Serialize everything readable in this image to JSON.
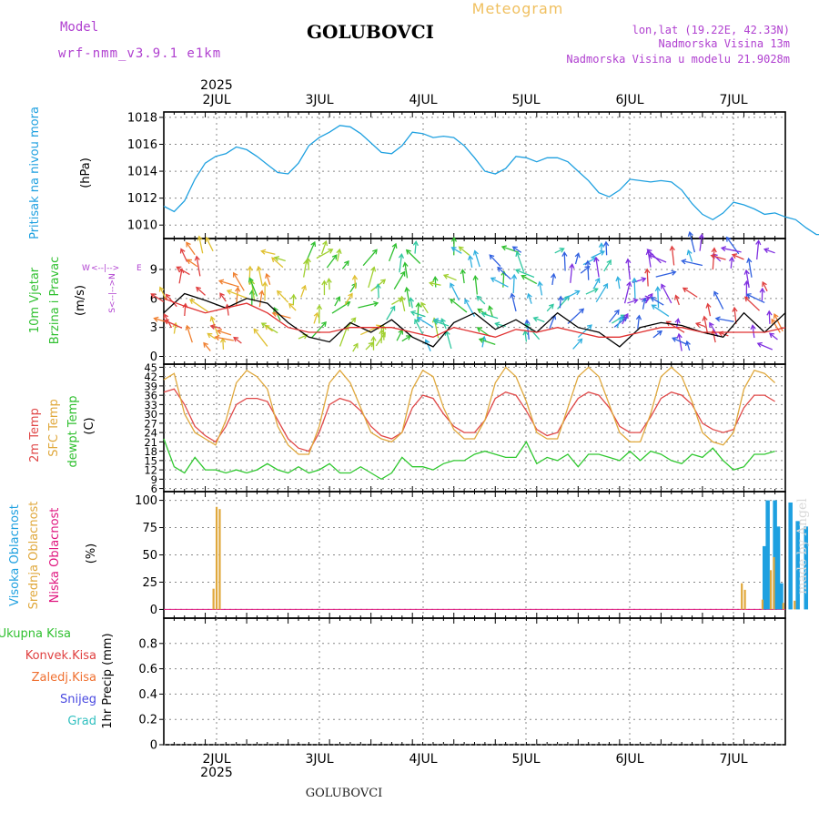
{
  "header": {
    "model_label": "Model",
    "model_name": "wrf-nmm_v3.9.1 e1km",
    "station": "GOLUBOVCI",
    "meteogram_label": "Meteogram",
    "lonlat": "lon,lat (19.22E, 42.33N)",
    "elevation": "Nadmorska Visina 13m",
    "model_elevation": "Nadmorska Visina u modelu 21.9028m",
    "footer_station": "GOLUBOVCI",
    "watermark": "made by Angel",
    "colors": {
      "model": "#b040d0",
      "meteogram": "#f0c060",
      "station": "#000000"
    }
  },
  "chart_data": [
    {
      "id": "pressure",
      "type": "line",
      "title": "",
      "ylabel_lines": [
        "Pritisak na nivou mora"
      ],
      "unit": "(hPa)",
      "ylim": [
        1009,
        1018.4
      ],
      "yticks": [
        "1010",
        "1012",
        "1014",
        "1016",
        "1018"
      ],
      "ytick_values": [
        1010,
        1012,
        1014,
        1016,
        1018
      ],
      "x_days": [
        "2JUL",
        "3JUL",
        "4JUL",
        "5JUL",
        "6JUL",
        "7JUL"
      ],
      "year_label": "2025",
      "series": [
        {
          "color": "#1ea0e0",
          "x": [
            0,
            1,
            2,
            3,
            4,
            5,
            6,
            7,
            8,
            9,
            10,
            11,
            12,
            13,
            14,
            15,
            16,
            17,
            18,
            19,
            20,
            21,
            22,
            23,
            24,
            25,
            26,
            27,
            28,
            29,
            30,
            31,
            32,
            33,
            34,
            35,
            36,
            37,
            38,
            39,
            40,
            41,
            42,
            43,
            44,
            45,
            46,
            47,
            48,
            49,
            50,
            51,
            52,
            53,
            54,
            55,
            56,
            57,
            58,
            59,
            60,
            61,
            62,
            63,
            64,
            65,
            66,
            67,
            68,
            69,
            70,
            71,
            72
          ],
          "values": [
            1011.4,
            1011.0,
            1011.8,
            1013.4,
            1014.6,
            1015.1,
            1015.3,
            1015.8,
            1015.6,
            1015.1,
            1014.5,
            1013.9,
            1013.8,
            1014.6,
            1015.9,
            1016.5,
            1016.9,
            1017.4,
            1017.3,
            1016.8,
            1016.1,
            1015.4,
            1015.3,
            1015.9,
            1016.9,
            1016.8,
            1016.5,
            1016.6,
            1016.5,
            1015.9,
            1015.0,
            1014.0,
            1013.8,
            1014.2,
            1015.1,
            1015.0,
            1014.7,
            1015.0,
            1015.0,
            1014.7,
            1014.0,
            1013.3,
            1012.4,
            1012.1,
            1012.6,
            1013.4,
            1013.3,
            1013.2,
            1013.3,
            1013.2,
            1012.6,
            1011.6,
            1010.8,
            1010.4,
            1010.9,
            1011.7,
            1011.5,
            1011.2,
            1010.8,
            1010.9,
            1010.6,
            1010.4,
            1009.8,
            1009.3,
            1009.3,
            1009.3,
            1009.3,
            1009.3,
            1009.3,
            1009.3,
            1009.3,
            1009.3,
            1009.3
          ]
        }
      ]
    },
    {
      "id": "wind",
      "type": "line",
      "title": "",
      "ylabel_lines": [
        "10m Vjetar",
        "Brzina i Pravac"
      ],
      "unit": "(m/s)",
      "ylim": [
        -0.8,
        12.2
      ],
      "yticks": [
        "0",
        "3",
        "6",
        "9"
      ],
      "ytick_values": [
        0,
        3,
        6,
        9
      ],
      "compass": {
        "n": "N",
        "s": "S",
        "e": "E",
        "w": "W",
        "arrows": "<--|-->"
      },
      "series": [
        {
          "color": "#000000",
          "x": [
            0,
            2,
            4,
            6,
            8,
            10,
            12,
            14,
            16,
            18,
            20,
            22,
            24,
            26,
            28,
            30,
            32,
            34,
            36,
            38,
            40,
            42,
            44,
            46,
            48,
            50,
            52,
            54,
            56,
            58,
            60
          ],
          "values": [
            4.5,
            6.5,
            5.8,
            5.0,
            6.0,
            5.5,
            3.5,
            2.0,
            1.5,
            3.5,
            2.5,
            3.8,
            2.0,
            1.0,
            3.5,
            4.5,
            2.8,
            3.8,
            2.5,
            4.5,
            3.0,
            2.5,
            1.0,
            3.0,
            3.5,
            3.2,
            2.5,
            2.0,
            4.5,
            2.5,
            4.5
          ]
        },
        {
          "color": "#e03030",
          "x": [
            0,
            2,
            4,
            6,
            8,
            10,
            12,
            14,
            16,
            18,
            20,
            22,
            24,
            26,
            28,
            30,
            32,
            34,
            36,
            38,
            40,
            42,
            44,
            46,
            48,
            50,
            52,
            54,
            56,
            58,
            60
          ],
          "values": [
            6.0,
            5.2,
            4.5,
            5.0,
            5.5,
            4.5,
            3.0,
            2.5,
            2.5,
            3.0,
            3.0,
            3.0,
            2.5,
            2.0,
            3.0,
            2.5,
            2.0,
            2.8,
            2.5,
            3.0,
            2.5,
            2.0,
            2.0,
            2.5,
            3.0,
            3.0,
            2.5,
            2.5,
            2.5,
            2.5,
            3.0
          ]
        }
      ]
    },
    {
      "id": "temperature",
      "type": "line",
      "title": "",
      "ylabel_lines": [
        "2m Temp",
        "SFC Temp",
        "dewpt Temp"
      ],
      "unit": "(C)",
      "ylim": [
        5,
        46
      ],
      "yticks": [
        "6",
        "9",
        "12",
        "15",
        "18",
        "21",
        "24",
        "27",
        "30",
        "33",
        "36",
        "39",
        "42",
        "45"
      ],
      "ytick_values": [
        6,
        9,
        12,
        15,
        18,
        21,
        24,
        27,
        30,
        33,
        36,
        39,
        42,
        45
      ],
      "series": [
        {
          "name": "2m Temp",
          "color": "#e04848",
          "x": [
            0,
            1,
            2,
            3,
            4,
            5,
            6,
            7,
            8,
            9,
            10,
            11,
            12,
            13,
            14,
            15,
            16,
            17,
            18,
            19,
            20,
            21,
            22,
            23,
            24,
            25,
            26,
            27,
            28,
            29,
            30,
            31,
            32,
            33,
            34,
            35,
            36,
            37,
            38,
            39,
            40,
            41,
            42,
            43,
            44,
            45,
            46,
            47,
            48,
            49,
            50,
            51,
            52,
            53,
            54,
            55,
            56,
            57,
            58,
            59
          ],
          "values": [
            37,
            38,
            33,
            26,
            23,
            21,
            26,
            33,
            35,
            35,
            34,
            28,
            22,
            19,
            18,
            24,
            33,
            35,
            34,
            31,
            26,
            23,
            22,
            24,
            32,
            36,
            35,
            30,
            26,
            24,
            24,
            28,
            35,
            37,
            36,
            31,
            25,
            23,
            24,
            30,
            35,
            37,
            36,
            32,
            26,
            24,
            24,
            29,
            35,
            37,
            36,
            33,
            27,
            25,
            24,
            25,
            32,
            36,
            36,
            34
          ]
        },
        {
          "name": "SFC Temp",
          "color": "#e0a83c",
          "x": [
            0,
            1,
            2,
            3,
            4,
            5,
            6,
            7,
            8,
            9,
            10,
            11,
            12,
            13,
            14,
            15,
            16,
            17,
            18,
            19,
            20,
            21,
            22,
            23,
            24,
            25,
            26,
            27,
            28,
            29,
            30,
            31,
            32,
            33,
            34,
            35,
            36,
            37,
            38,
            39,
            40,
            41,
            42,
            43,
            44,
            45,
            46,
            47,
            48,
            49,
            50,
            51,
            52,
            53,
            54,
            55,
            56,
            57,
            58,
            59
          ],
          "values": [
            41,
            43,
            30,
            24,
            22,
            20,
            28,
            40,
            44,
            42,
            38,
            26,
            20,
            17,
            17,
            26,
            40,
            44,
            40,
            32,
            24,
            22,
            21,
            24,
            38,
            44,
            42,
            32,
            25,
            22,
            22,
            28,
            40,
            45,
            42,
            34,
            24,
            22,
            22,
            32,
            42,
            45,
            42,
            33,
            24,
            21,
            21,
            30,
            42,
            45,
            42,
            34,
            24,
            21,
            20,
            24,
            38,
            44,
            43,
            40
          ]
        },
        {
          "name": "dewpt Temp",
          "color": "#30c830",
          "x": [
            0,
            1,
            2,
            3,
            4,
            5,
            6,
            7,
            8,
            9,
            10,
            11,
            12,
            13,
            14,
            15,
            16,
            17,
            18,
            19,
            20,
            21,
            22,
            23,
            24,
            25,
            26,
            27,
            28,
            29,
            30,
            31,
            32,
            33,
            34,
            35,
            36,
            37,
            38,
            39,
            40,
            41,
            42,
            43,
            44,
            45,
            46,
            47,
            48,
            49,
            50,
            51,
            52,
            53,
            54,
            55,
            56,
            57,
            58,
            59
          ],
          "values": [
            22,
            13,
            11,
            16,
            12,
            12,
            11,
            12,
            11,
            12,
            14,
            12,
            11,
            13,
            11,
            12,
            14,
            11,
            11,
            13,
            11,
            9,
            11,
            16,
            13,
            13,
            12,
            14,
            15,
            15,
            17,
            18,
            17,
            16,
            16,
            21,
            14,
            16,
            15,
            17,
            13,
            17,
            17,
            16,
            15,
            18,
            15,
            18,
            17,
            15,
            14,
            17,
            16,
            19,
            15,
            12,
            13,
            17,
            17,
            18
          ]
        }
      ]
    },
    {
      "id": "cloud",
      "type": "bar",
      "title": "",
      "ylabel_lines": [
        "Visoka Oblacnost",
        "Srednja Oblacnost",
        "Niska Oblacnost"
      ],
      "unit": "(%)",
      "ylim": [
        -8,
        108
      ],
      "yticks": [
        "0",
        "25",
        "50",
        "75",
        "100"
      ],
      "ytick_values": [
        0,
        25,
        50,
        75,
        100
      ],
      "series": [
        {
          "name": "Visoka Oblacnost",
          "color": "#1ea0e0",
          "x": [
            58.0,
            58.3,
            59.0,
            59.3,
            59.6,
            60.5,
            61.2,
            62.0,
            63.8
          ],
          "values": [
            58,
            100,
            100,
            76,
            24,
            98,
            81,
            76,
            80
          ]
        },
        {
          "name": "Srednja Oblacnost",
          "color": "#e0a83c",
          "x": [
            4.8,
            5.1,
            5.4,
            55.8,
            56.1,
            57.8,
            58.6,
            58.9,
            59.8,
            60.9,
            64.4
          ],
          "values": [
            19,
            94,
            92,
            24,
            18,
            9,
            36,
            48,
            6,
            8,
            8
          ]
        },
        {
          "name": "Niska Oblacnost",
          "color": "#e01880",
          "x": [],
          "values": []
        }
      ]
    },
    {
      "id": "precip",
      "type": "line",
      "title": "",
      "ylabel_lines": [
        "1hr Precip (mm)"
      ],
      "unit": "",
      "ylim": [
        0,
        1.0
      ],
      "yticks": [
        "0",
        "0.2",
        "0.4",
        "0.6",
        "0.8"
      ],
      "ytick_values": [
        0,
        0.2,
        0.4,
        0.6,
        0.8
      ],
      "legend": [
        {
          "name": "Ukupna Kisa",
          "color": "#30c030"
        },
        {
          "name": "Konvek.Kisa",
          "color": "#e04040"
        },
        {
          "name": "Zaledj.Kisa",
          "color": "#f07030"
        },
        {
          "name": "Snijeg",
          "color": "#4848e0"
        },
        {
          "name": "Grad",
          "color": "#30c0c0"
        }
      ],
      "series": []
    }
  ]
}
